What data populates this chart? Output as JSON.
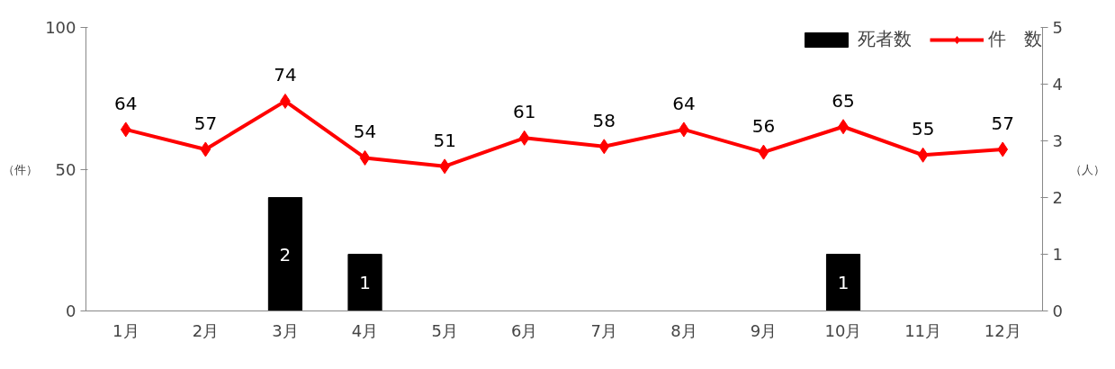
{
  "chart_data": {
    "type": "line",
    "ylabel": "（件）",
    "y2label": "（人）",
    "categories": [
      "1月",
      "2月",
      "3月",
      "4月",
      "5月",
      "6月",
      "7月",
      "8月",
      "9月",
      "10月",
      "11月",
      "12月"
    ],
    "series": [
      {
        "name": "死者数",
        "type": "bar",
        "axis": "y2",
        "color": "#000000",
        "values": [
          null,
          null,
          2,
          1,
          null,
          null,
          null,
          null,
          null,
          1,
          null,
          null
        ]
      },
      {
        "name": "件　数",
        "color": "#ff0000",
        "marker": "diamond",
        "values": [
          64,
          57,
          74,
          54,
          51,
          61,
          58,
          64,
          56,
          65,
          55,
          57
        ]
      }
    ],
    "ylim": [
      0,
      100
    ],
    "yticks": [
      0,
      50,
      100
    ],
    "y2lim": [
      0,
      5
    ],
    "y2ticks": [
      0,
      1,
      2,
      3,
      4,
      5
    ],
    "data_labels": true,
    "legend": "top right",
    "grid": false
  }
}
